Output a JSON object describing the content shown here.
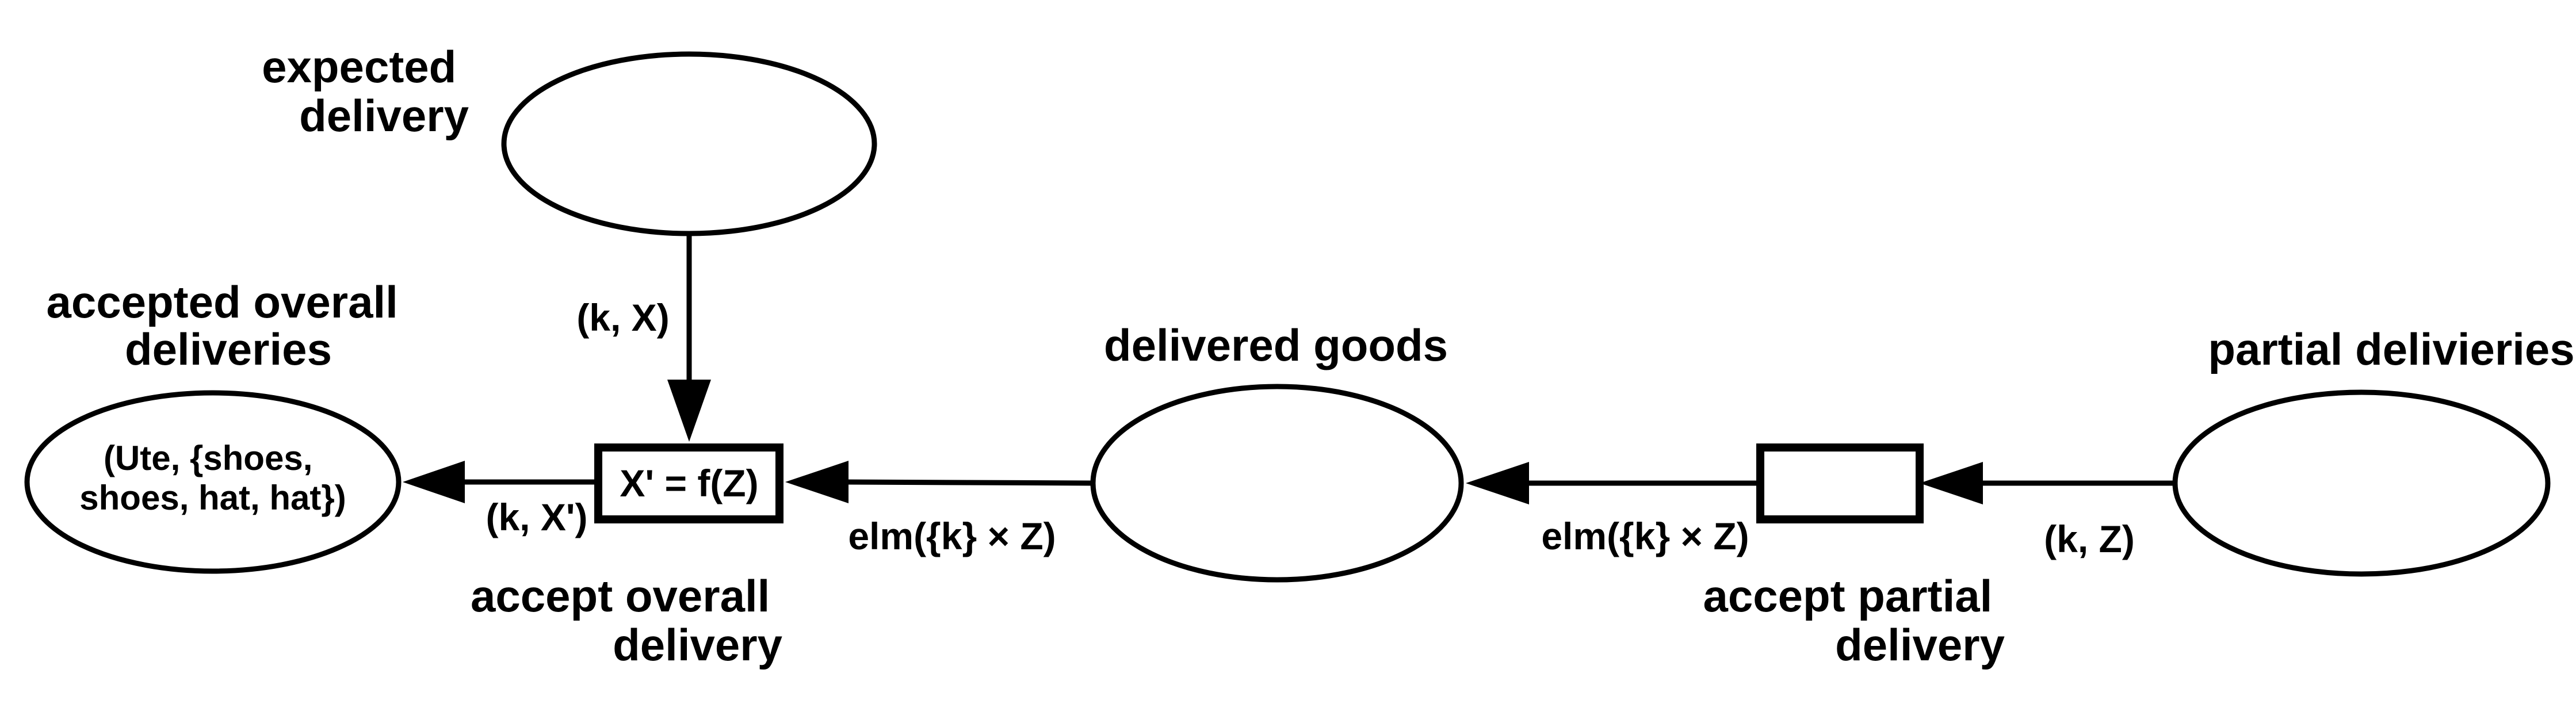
{
  "places": {
    "expected_delivery": {
      "label_lines": [
        "expected",
        "delivery"
      ]
    },
    "accepted_overall_deliveries": {
      "label_lines": [
        "accepted overall",
        "deliveries"
      ],
      "token_lines": [
        "(Ute, {shoes,",
        "shoes, hat, hat})"
      ]
    },
    "delivered_goods": {
      "label": "delivered goods"
    },
    "partial_deliveries": {
      "label": "partial delivieries"
    }
  },
  "transitions": {
    "accept_overall_delivery": {
      "inscription": "X' = f(Z)",
      "label_lines": [
        "accept overall",
        "delivery"
      ]
    },
    "accept_partial_delivery": {
      "inscription": "",
      "label_lines": [
        "accept partial",
        "delivery"
      ]
    }
  },
  "arcs": {
    "expected_to_overall": "(k, X)",
    "overall_to_accepted": "(k, X')",
    "goods_to_overall": "elm({k} × Z)",
    "partial_transition_to_goods": "elm({k} × Z)",
    "partial_place_to_transition": "(k, Z)"
  }
}
